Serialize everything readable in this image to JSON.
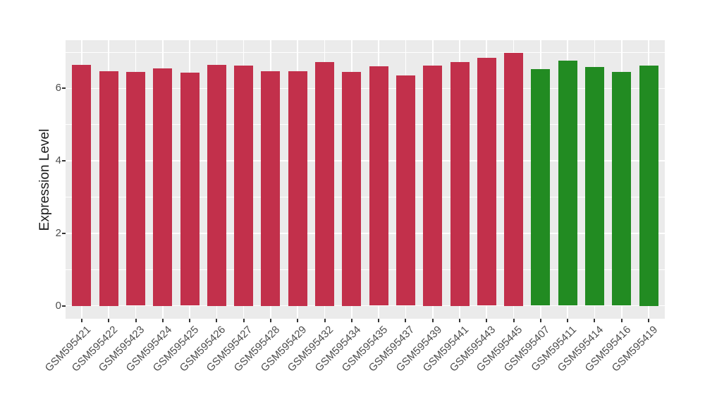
{
  "chart_data": {
    "type": "bar",
    "title": "",
    "xlabel": "",
    "ylabel": "Expression Level",
    "categories": [
      "GSM595421",
      "GSM595422",
      "GSM595423",
      "GSM595424",
      "GSM595425",
      "GSM595426",
      "GSM595427",
      "GSM595428",
      "GSM595429",
      "GSM595432",
      "GSM595434",
      "GSM595435",
      "GSM595437",
      "GSM595439",
      "GSM595441",
      "GSM595443",
      "GSM595445",
      "GSM595407",
      "GSM595411",
      "GSM595414",
      "GSM595416",
      "GSM595419"
    ],
    "values": [
      6.65,
      6.47,
      6.45,
      6.55,
      6.43,
      6.65,
      6.62,
      6.48,
      6.47,
      6.72,
      6.46,
      6.6,
      6.35,
      6.63,
      6.72,
      6.85,
      6.97,
      6.53,
      6.77,
      6.59,
      6.45,
      6.63
    ],
    "bar_colors": [
      "#C2304B",
      "#C2304B",
      "#C2304B",
      "#C2304B",
      "#C2304B",
      "#C2304B",
      "#C2304B",
      "#C2304B",
      "#C2304B",
      "#C2304B",
      "#C2304B",
      "#C2304B",
      "#C2304B",
      "#C2304B",
      "#C2304B",
      "#C2304B",
      "#C2304B",
      "#228B22",
      "#228B22",
      "#228B22",
      "#228B22",
      "#228B22"
    ],
    "yticks": [
      0,
      2,
      4,
      6
    ],
    "minor_yticks": [
      1,
      3,
      5,
      7
    ],
    "ylim": [
      -0.36,
      7.33
    ],
    "grid": true,
    "legend_position": "none",
    "colors": {
      "red_bars": "#C2304B",
      "green_bars": "#228B22",
      "panel_background": "#EBEBEB",
      "gridlines": "#FFFFFF",
      "axis_text": "#4D4D4D",
      "axis_title": "#1A1A1A",
      "tick_marks": "#333333"
    }
  }
}
